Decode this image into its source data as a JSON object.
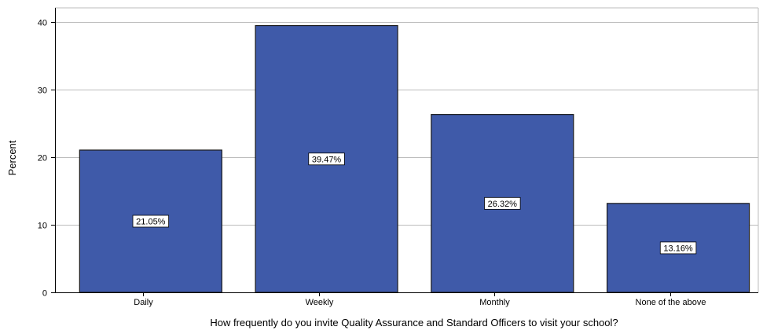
{
  "chart_data": {
    "type": "bar",
    "categories": [
      "Daily",
      "Weekly",
      "Monthly",
      "None of the above"
    ],
    "values": [
      21.05,
      39.47,
      26.32,
      13.16
    ],
    "data_labels": [
      "21.05%",
      "39.47%",
      "26.32%",
      "13.16%"
    ],
    "title": "",
    "xlabel": "How frequently do you invite Quality Assurance and Standard Officers to visit your school?",
    "ylabel": "Percent",
    "ylim": [
      0,
      40
    ],
    "yticks": [
      0,
      10,
      20,
      30,
      40
    ],
    "grid": true,
    "legend": "none",
    "bar_color": "#3f5aa9",
    "bar_edge_color": "#1a1a1a",
    "gridline_color": "#bdbdbd"
  }
}
